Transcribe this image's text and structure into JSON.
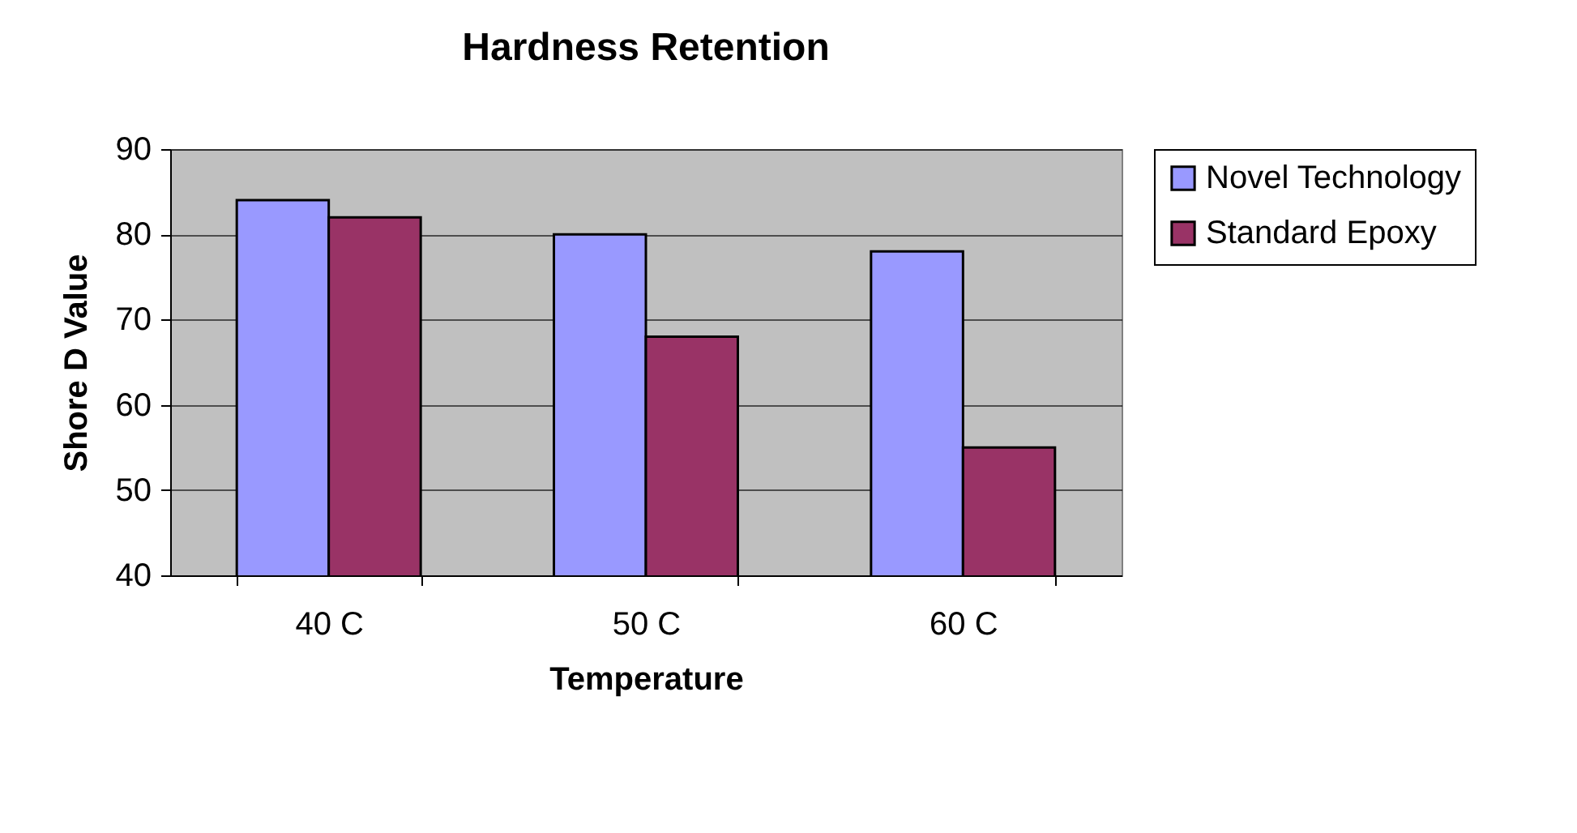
{
  "chart_data": {
    "type": "bar",
    "title": "Hardness Retention",
    "xlabel": "Temperature",
    "ylabel": "Shore D Value",
    "categories": [
      "40 C",
      "50 C",
      "60 C"
    ],
    "series": [
      {
        "name": "Novel Technology",
        "color": "#9999ff",
        "values": [
          84,
          80,
          78
        ]
      },
      {
        "name": "Standard Epoxy",
        "color": "#993366",
        "values": [
          82,
          68,
          55
        ]
      }
    ],
    "ylim": [
      40,
      90
    ],
    "yticks": [
      40,
      50,
      60,
      70,
      80,
      90
    ],
    "grid": "y",
    "legend": "right"
  }
}
